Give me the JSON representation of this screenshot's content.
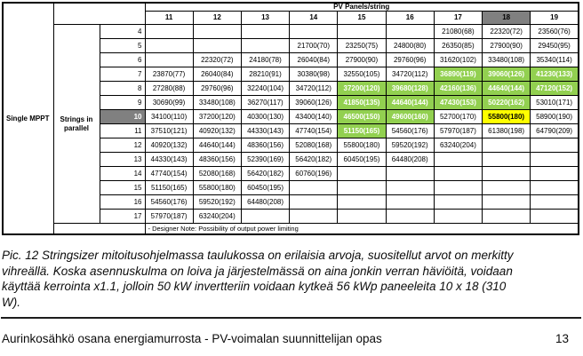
{
  "table": {
    "title": "PV Panels/string",
    "col_headers": [
      "11",
      "12",
      "13",
      "14",
      "15",
      "16",
      "17",
      "18",
      "19"
    ],
    "highlighted_col": "18",
    "left_label": "Single MPPT",
    "group_label": "Strings in parallel",
    "highlighted_row": "10",
    "note": "- Designer Note: Possibility of output power limiting",
    "rows": [
      {
        "n": "4",
        "cells": [
          "",
          "",
          "",
          "",
          "",
          "",
          "21080(68)",
          "22320(72)",
          "23560(76)"
        ],
        "hl": [
          "",
          "",
          "",
          "",
          "",
          "",
          "",
          "",
          ""
        ]
      },
      {
        "n": "5",
        "cells": [
          "",
          "",
          "",
          "21700(70)",
          "23250(75)",
          "24800(80)",
          "26350(85)",
          "27900(90)",
          "29450(95)"
        ],
        "hl": [
          "",
          "",
          "",
          "",
          "",
          "",
          "",
          "",
          ""
        ]
      },
      {
        "n": "6",
        "cells": [
          "",
          "22320(72)",
          "24180(78)",
          "26040(84)",
          "27900(90)",
          "29760(96)",
          "31620(102)",
          "33480(108)",
          "35340(114)"
        ],
        "hl": [
          "",
          "",
          "",
          "",
          "",
          "",
          "",
          "",
          ""
        ]
      },
      {
        "n": "7",
        "cells": [
          "23870(77)",
          "26040(84)",
          "28210(91)",
          "30380(98)",
          "32550(105)",
          "34720(112)",
          "36890(119)",
          "39060(126)",
          "41230(133)"
        ],
        "hl": [
          "",
          "",
          "",
          "",
          "",
          "",
          "g",
          "g",
          "g"
        ]
      },
      {
        "n": "8",
        "cells": [
          "27280(88)",
          "29760(96)",
          "32240(104)",
          "34720(112)",
          "37200(120)",
          "39680(128)",
          "42160(136)",
          "44640(144)",
          "47120(152)"
        ],
        "hl": [
          "",
          "",
          "",
          "",
          "g",
          "g",
          "g",
          "g",
          "g"
        ]
      },
      {
        "n": "9",
        "cells": [
          "30690(99)",
          "33480(108)",
          "36270(117)",
          "39060(126)",
          "41850(135)",
          "44640(144)",
          "47430(153)",
          "50220(162)",
          "53010(171)"
        ],
        "hl": [
          "",
          "",
          "",
          "",
          "g",
          "g",
          "g",
          "g",
          ""
        ]
      },
      {
        "n": "10",
        "cells": [
          "34100(110)",
          "37200(120)",
          "40300(130)",
          "43400(140)",
          "46500(150)",
          "49600(160)",
          "52700(170)",
          "55800(180)",
          "58900(190)"
        ],
        "hl": [
          "",
          "",
          "",
          "",
          "g",
          "g",
          "",
          "y",
          ""
        ]
      },
      {
        "n": "11",
        "cells": [
          "37510(121)",
          "40920(132)",
          "44330(143)",
          "47740(154)",
          "51150(165)",
          "54560(176)",
          "57970(187)",
          "61380(198)",
          "64790(209)"
        ],
        "hl": [
          "",
          "",
          "",
          "",
          "g",
          "",
          "",
          "",
          ""
        ]
      },
      {
        "n": "12",
        "cells": [
          "40920(132)",
          "44640(144)",
          "48360(156)",
          "52080(168)",
          "55800(180)",
          "59520(192)",
          "63240(204)",
          "",
          ""
        ],
        "hl": [
          "",
          "",
          "",
          "",
          "",
          "",
          "",
          "",
          ""
        ]
      },
      {
        "n": "13",
        "cells": [
          "44330(143)",
          "48360(156)",
          "52390(169)",
          "56420(182)",
          "60450(195)",
          "64480(208)",
          "",
          "",
          ""
        ],
        "hl": [
          "",
          "",
          "",
          "",
          "",
          "",
          "",
          "",
          ""
        ]
      },
      {
        "n": "14",
        "cells": [
          "47740(154)",
          "52080(168)",
          "56420(182)",
          "60760(196)",
          "",
          "",
          "",
          "",
          ""
        ],
        "hl": [
          "",
          "",
          "",
          "",
          "",
          "",
          "",
          "",
          ""
        ]
      },
      {
        "n": "15",
        "cells": [
          "51150(165)",
          "55800(180)",
          "60450(195)",
          "",
          "",
          "",
          "",
          "",
          ""
        ],
        "hl": [
          "",
          "",
          "",
          "",
          "",
          "",
          "",
          "",
          ""
        ]
      },
      {
        "n": "16",
        "cells": [
          "54560(176)",
          "59520(192)",
          "64480(208)",
          "",
          "",
          "",
          "",
          "",
          ""
        ],
        "hl": [
          "",
          "",
          "",
          "",
          "",
          "",
          "",
          "",
          ""
        ]
      },
      {
        "n": "17",
        "cells": [
          "57970(187)",
          "63240(204)",
          "",
          "",
          "",
          "",
          "",
          "",
          ""
        ],
        "hl": [
          "",
          "",
          "",
          "",
          "",
          "",
          "",
          "",
          ""
        ]
      }
    ]
  },
  "caption": {
    "lines": [
      "Pic. 12 Stringsizer mitoitusohjelmassa taulukossa on erilaisia arvoja, suositellut arvot on merkitty",
      "vihreällä. Koska asennuskulma on loiva ja järjestelmässä on aina jonkin verran häviöitä, voidaan",
      "käyttää kerrointa x1.1, jolloin 50 kW invertteriin voidaan kytkeä 56 kWp paneeleita 10 x 18 (310",
      "W)."
    ]
  },
  "footer": {
    "text": "Aurinkosähkö osana energiamurrosta - PV-voimalan suunnittelijan opas",
    "page_number": "13"
  },
  "colors": {
    "recommended_green": "#92D050",
    "selected_yellow": "#FFFF00",
    "highlight_gray": "#808080"
  }
}
